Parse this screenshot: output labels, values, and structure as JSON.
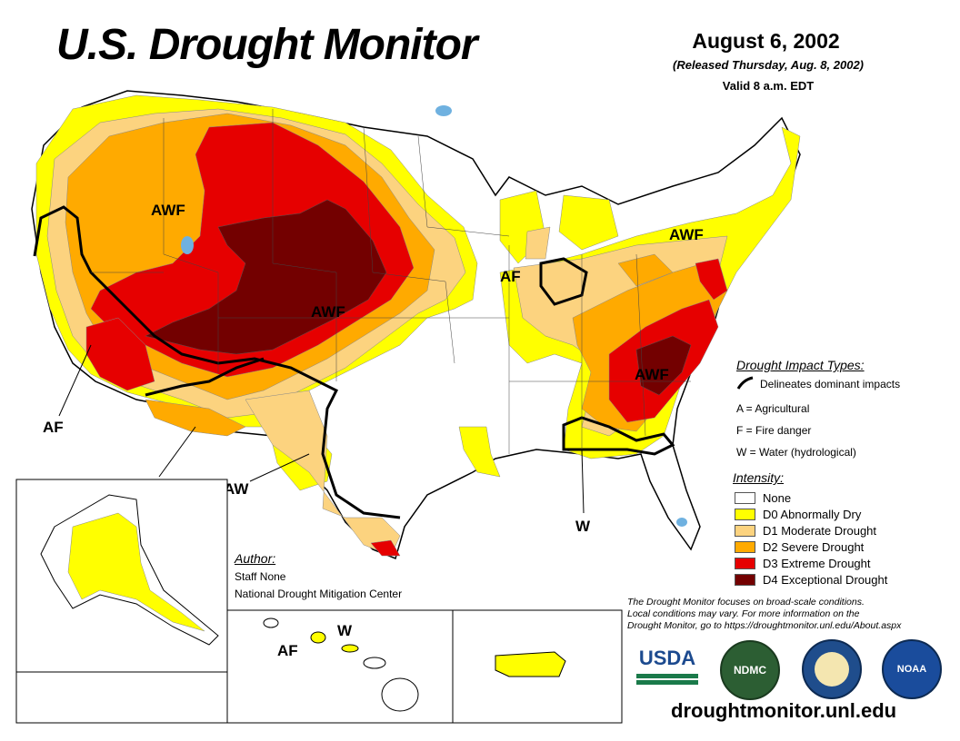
{
  "header": {
    "title": "U.S. Drought Monitor",
    "date": "August 6, 2002",
    "released": "(Released Thursday, Aug. 8, 2002)",
    "valid": "Valid 8 a.m. EDT"
  },
  "map_labels": {
    "awf_northwest": "AWF",
    "awf_central": "AWF",
    "awf_northeast": "AWF",
    "awf_southeast": "AWF",
    "af_west": "AF",
    "af_midwest": "AF",
    "aw_south": "AW",
    "w_southeast": "W",
    "af_hawaii": "AF",
    "w_hawaii": "W"
  },
  "impact_legend": {
    "title": "Drought Impact Types:",
    "line_label": "Delineates dominant impacts",
    "agricultural": "A = Agricultural",
    "fire": "F = Fire danger",
    "water": "W = Water (hydrological)"
  },
  "intensity_legend": {
    "title": "Intensity:",
    "items": [
      {
        "label": "None",
        "color": "#ffffff"
      },
      {
        "label": "D0 Abnormally Dry",
        "color": "#ffff00"
      },
      {
        "label": "D1 Moderate Drought",
        "color": "#fcd37f"
      },
      {
        "label": "D2 Severe Drought",
        "color": "#ffaa00"
      },
      {
        "label": "D3 Extreme Drought",
        "color": "#e60000"
      },
      {
        "label": "D4 Exceptional Drought",
        "color": "#730000"
      }
    ]
  },
  "author": {
    "title": "Author:",
    "name": "Staff None",
    "org": "National Drought Mitigation Center"
  },
  "note": {
    "line1": "The Drought Monitor focuses on broad-scale conditions.",
    "line2": "Local conditions may vary. For more information on the",
    "line3": "Drought Monitor, go to https://droughtmonitor.unl.edu/About.aspx"
  },
  "logos": {
    "usda": "USDA",
    "ndmc": "NDMC",
    "noaa": "NOAA"
  },
  "footer": {
    "url": "droughtmonitor.unl.edu"
  }
}
